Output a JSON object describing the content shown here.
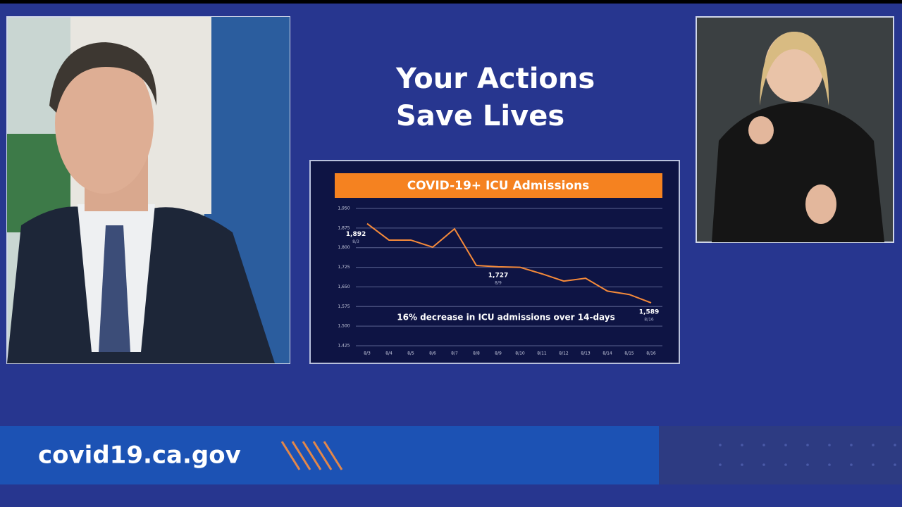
{
  "header": {
    "lines": [
      "Your Actions",
      "Save Lives"
    ]
  },
  "banner": {
    "url": "covid19.ca.gov"
  },
  "chart_data": {
    "type": "line",
    "title": "COVID-19+ ICU Admissions",
    "annotation": "16% decrease in ICU admissions over 14-days",
    "categories": [
      "8/3",
      "8/4",
      "8/5",
      "8/6",
      "8/7",
      "8/8",
      "8/9",
      "8/10",
      "8/11",
      "8/12",
      "8/13",
      "8/14",
      "8/15",
      "8/16"
    ],
    "values": [
      1892,
      1829,
      1829,
      1802,
      1872,
      1732,
      1727,
      1725,
      1700,
      1672,
      1683,
      1634,
      1621,
      1589
    ],
    "value_labels": [
      "1,892",
      null,
      null,
      null,
      null,
      null,
      "1,727",
      null,
      null,
      null,
      null,
      null,
      null,
      "1,589"
    ],
    "color": "#f58a3a",
    "ylim": [
      1425,
      1950
    ],
    "yticks": [
      {
        "value": 1425,
        "label": "1,425"
      },
      {
        "value": 1500,
        "label": "1,500"
      },
      {
        "value": 1575,
        "label": "1,575"
      },
      {
        "value": 1650,
        "label": "1,650"
      },
      {
        "value": 1725,
        "label": "1,725"
      },
      {
        "value": 1800,
        "label": "1,800"
      },
      {
        "value": 1875,
        "label": "1,875"
      },
      {
        "value": 1950,
        "label": "1,950"
      }
    ],
    "grid": true
  }
}
